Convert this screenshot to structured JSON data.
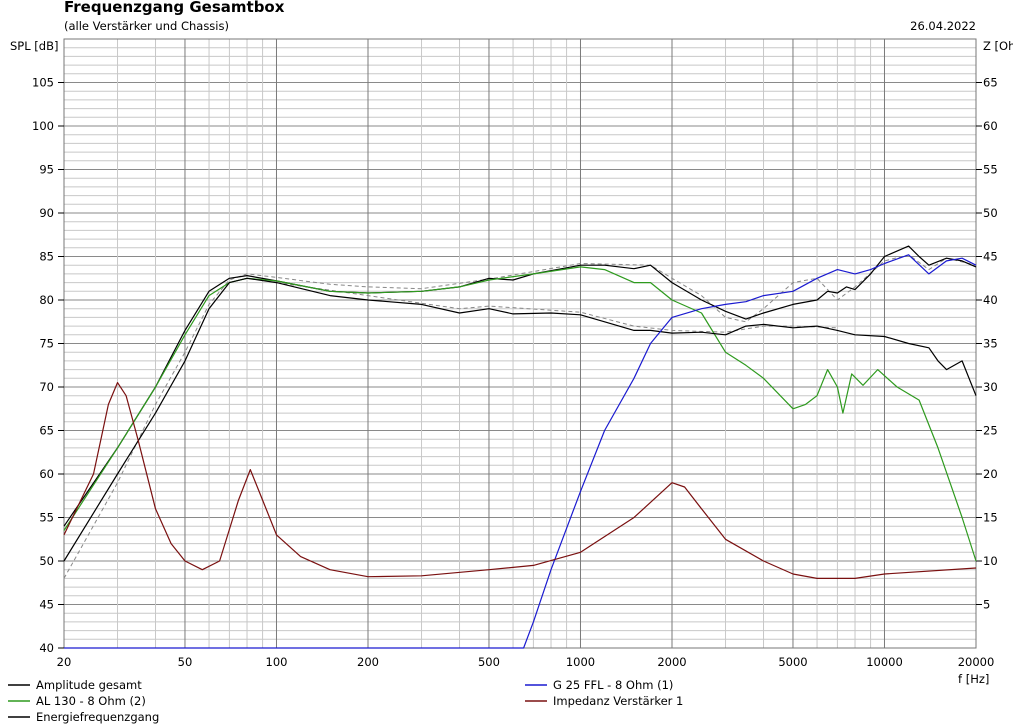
{
  "chart_data": {
    "type": "line",
    "title": "Frequenzgang Gesamtbox",
    "subtitle": "(alle Verstärker und Chassis)",
    "date": "26.04.2022",
    "xlabel": "f [Hz]",
    "ylabel": "SPL [dB]",
    "y2label": "Z [Ohm]",
    "xscale": "log",
    "xlim": [
      20,
      20000
    ],
    "ylim": [
      40,
      110
    ],
    "y2lim": [
      0,
      70
    ],
    "grid": true,
    "legend_placement": "bottom",
    "xticks": [
      20,
      50,
      100,
      200,
      500,
      1000,
      2000,
      5000,
      10000,
      20000
    ],
    "yticks": [
      40,
      45,
      50,
      55,
      60,
      65,
      70,
      75,
      80,
      85,
      90,
      95,
      100,
      105
    ],
    "y2ticks": [
      5,
      10,
      15,
      20,
      25,
      30,
      35,
      40,
      45,
      50,
      55,
      60,
      65
    ],
    "series": [
      {
        "name": "Amplitude gesamt",
        "color": "#000000",
        "axis": "left",
        "points": [
          [
            20,
            54
          ],
          [
            30,
            63
          ],
          [
            40,
            70
          ],
          [
            50,
            76.5
          ],
          [
            60,
            81
          ],
          [
            70,
            82.5
          ],
          [
            80,
            82.8
          ],
          [
            100,
            82.2
          ],
          [
            150,
            81
          ],
          [
            200,
            80.8
          ],
          [
            300,
            81
          ],
          [
            400,
            81.5
          ],
          [
            500,
            82.5
          ],
          [
            600,
            82.3
          ],
          [
            700,
            83
          ],
          [
            900,
            83.7
          ],
          [
            1000,
            84
          ],
          [
            1200,
            84
          ],
          [
            1500,
            83.6
          ],
          [
            1700,
            84
          ],
          [
            2000,
            82
          ],
          [
            2500,
            80
          ],
          [
            3000,
            78.7
          ],
          [
            3500,
            77.8
          ],
          [
            4000,
            78.5
          ],
          [
            5000,
            79.5
          ],
          [
            6000,
            80
          ],
          [
            6500,
            81
          ],
          [
            7000,
            80.8
          ],
          [
            7500,
            81.5
          ],
          [
            8000,
            81.2
          ],
          [
            9000,
            83
          ],
          [
            10000,
            85
          ],
          [
            12000,
            86.2
          ],
          [
            13000,
            85
          ],
          [
            14000,
            84
          ],
          [
            16000,
            84.8
          ],
          [
            18000,
            84.5
          ],
          [
            20000,
            83.8
          ]
        ]
      },
      {
        "name": "AL 130 - 8 Ohm (2)",
        "color": "#2e9a1e",
        "axis": "left",
        "points": [
          [
            20,
            53.5
          ],
          [
            30,
            63
          ],
          [
            40,
            70
          ],
          [
            50,
            76
          ],
          [
            60,
            80.5
          ],
          [
            70,
            82
          ],
          [
            80,
            82.5
          ],
          [
            100,
            82.2
          ],
          [
            150,
            81
          ],
          [
            200,
            80.8
          ],
          [
            300,
            81
          ],
          [
            400,
            81.5
          ],
          [
            500,
            82.3
          ],
          [
            700,
            83
          ],
          [
            1000,
            83.8
          ],
          [
            1200,
            83.5
          ],
          [
            1500,
            82
          ],
          [
            1700,
            82
          ],
          [
            2000,
            80
          ],
          [
            2500,
            78.5
          ],
          [
            3000,
            74
          ],
          [
            3500,
            72.5
          ],
          [
            4000,
            71
          ],
          [
            5000,
            67.5
          ],
          [
            5500,
            68
          ],
          [
            6000,
            69
          ],
          [
            6500,
            72
          ],
          [
            7000,
            70
          ],
          [
            7300,
            67
          ],
          [
            7800,
            71.5
          ],
          [
            8500,
            70.2
          ],
          [
            9500,
            72
          ],
          [
            11000,
            70
          ],
          [
            13000,
            68.5
          ],
          [
            15000,
            63
          ],
          [
            18000,
            55
          ],
          [
            20000,
            50
          ]
        ]
      },
      {
        "name": "Energiefrequenzgang",
        "color": "#000000",
        "axis": "left",
        "points": [
          [
            20,
            50
          ],
          [
            30,
            60
          ],
          [
            40,
            67
          ],
          [
            50,
            73
          ],
          [
            60,
            79
          ],
          [
            70,
            82
          ],
          [
            80,
            82.5
          ],
          [
            100,
            82
          ],
          [
            150,
            80.5
          ],
          [
            200,
            80
          ],
          [
            300,
            79.5
          ],
          [
            400,
            78.5
          ],
          [
            500,
            79
          ],
          [
            600,
            78.4
          ],
          [
            800,
            78.5
          ],
          [
            1000,
            78.3
          ],
          [
            1200,
            77.5
          ],
          [
            1500,
            76.5
          ],
          [
            1700,
            76.5
          ],
          [
            2000,
            76.2
          ],
          [
            2500,
            76.3
          ],
          [
            3000,
            76
          ],
          [
            3500,
            77
          ],
          [
            4000,
            77.2
          ],
          [
            5000,
            76.8
          ],
          [
            6000,
            77
          ],
          [
            7000,
            76.5
          ],
          [
            8000,
            76
          ],
          [
            10000,
            75.8
          ],
          [
            12000,
            75
          ],
          [
            14000,
            74.5
          ],
          [
            15000,
            73
          ],
          [
            16000,
            72
          ],
          [
            18000,
            73
          ],
          [
            20000,
            69
          ]
        ]
      },
      {
        "name": "G 25 FFL - 8 Ohm (1)",
        "color": "#1a1ad0",
        "axis": "left",
        "points": [
          [
            20,
            40
          ],
          [
            650,
            40
          ],
          [
            700,
            43
          ],
          [
            800,
            49
          ],
          [
            1000,
            58
          ],
          [
            1200,
            65
          ],
          [
            1500,
            71
          ],
          [
            1700,
            75
          ],
          [
            2000,
            78
          ],
          [
            2500,
            79
          ],
          [
            3000,
            79.5
          ],
          [
            3500,
            79.8
          ],
          [
            4000,
            80.5
          ],
          [
            5000,
            81
          ],
          [
            6000,
            82.5
          ],
          [
            7000,
            83.5
          ],
          [
            8000,
            83
          ],
          [
            9000,
            83.5
          ],
          [
            10000,
            84.2
          ],
          [
            12000,
            85.2
          ],
          [
            14000,
            83
          ],
          [
            16000,
            84.5
          ],
          [
            18000,
            84.8
          ],
          [
            20000,
            84
          ]
        ]
      },
      {
        "name": "Impedanz Verstärker 1",
        "color": "#7a1010",
        "axis": "right",
        "points": [
          [
            20,
            13
          ],
          [
            25,
            20
          ],
          [
            28,
            28
          ],
          [
            30,
            30.5
          ],
          [
            32,
            29
          ],
          [
            35,
            24
          ],
          [
            40,
            16
          ],
          [
            45,
            12
          ],
          [
            50,
            10
          ],
          [
            57,
            9
          ],
          [
            65,
            10
          ],
          [
            75,
            17
          ],
          [
            82,
            20.5
          ],
          [
            90,
            17
          ],
          [
            100,
            13
          ],
          [
            120,
            10.5
          ],
          [
            150,
            9
          ],
          [
            200,
            8.2
          ],
          [
            300,
            8.3
          ],
          [
            500,
            9
          ],
          [
            700,
            9.5
          ],
          [
            1000,
            11
          ],
          [
            1500,
            15
          ],
          [
            2000,
            19
          ],
          [
            2200,
            18.5
          ],
          [
            2500,
            16
          ],
          [
            3000,
            12.5
          ],
          [
            4000,
            10
          ],
          [
            5000,
            8.5
          ],
          [
            6000,
            8
          ],
          [
            8000,
            8
          ],
          [
            10000,
            8.5
          ],
          [
            20000,
            9.2
          ]
        ]
      },
      {
        "color": "#888888",
        "dashed": true,
        "axis": "left",
        "points": [
          [
            20,
            48
          ],
          [
            30,
            59
          ],
          [
            40,
            68
          ],
          [
            50,
            74
          ],
          [
            60,
            79.5
          ],
          [
            70,
            82.3
          ],
          [
            80,
            83
          ],
          [
            100,
            82.6
          ],
          [
            150,
            81.8
          ],
          [
            200,
            81.5
          ],
          [
            300,
            81.3
          ],
          [
            500,
            82.4
          ],
          [
            1000,
            84.2
          ],
          [
            1700,
            84
          ],
          [
            2000,
            82.5
          ],
          [
            2500,
            80.5
          ],
          [
            3000,
            78
          ],
          [
            3500,
            77.5
          ],
          [
            4000,
            79
          ],
          [
            5000,
            82
          ],
          [
            6000,
            82.5
          ],
          [
            7000,
            80
          ],
          [
            8000,
            81.5
          ],
          [
            10000,
            84.5
          ],
          [
            12000,
            85.2
          ],
          [
            14000,
            83.5
          ],
          [
            16000,
            84.8
          ],
          [
            20000,
            84
          ]
        ]
      },
      {
        "color": "#888888",
        "dashed": true,
        "axis": "left",
        "points": [
          [
            100,
            82
          ],
          [
            200,
            80.5
          ],
          [
            400,
            79
          ],
          [
            500,
            79.3
          ],
          [
            1000,
            78.6
          ],
          [
            1500,
            77
          ],
          [
            2000,
            76.5
          ],
          [
            3000,
            76.3
          ],
          [
            4000,
            77
          ],
          [
            5000,
            77
          ],
          [
            7000,
            76.8
          ]
        ]
      }
    ]
  }
}
